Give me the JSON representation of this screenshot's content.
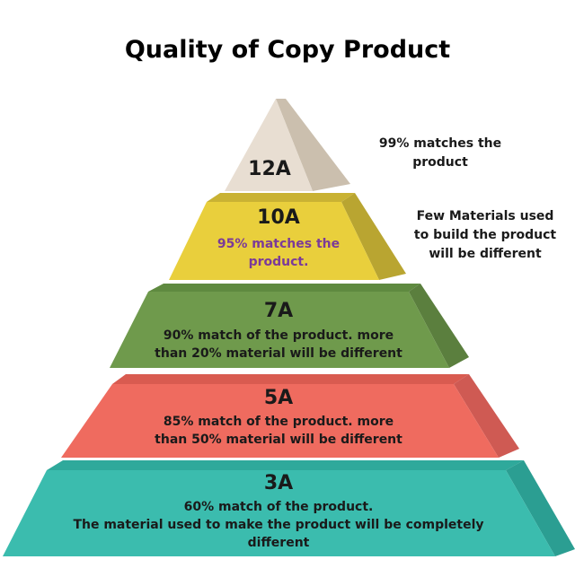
{
  "title": "Quality of Copy Product",
  "colors": {
    "level_12A": "#e8ded2",
    "level_10A": "#e9cf3c",
    "level_7A": "#6f9a4c",
    "level_5A": "#ef6b5f",
    "level_3A": "#3bbcae",
    "highlight_text": "#7b3a99"
  },
  "levels": [
    {
      "label": "12A",
      "description": []
    },
    {
      "label": "10A",
      "description": [
        "95% matches the",
        "product."
      ]
    },
    {
      "label": "7A",
      "description": [
        "90% match of the product. more",
        "than 20% material will be different"
      ]
    },
    {
      "label": "5A",
      "description": [
        "85% match of the product. more",
        "than 50% material will be different"
      ]
    },
    {
      "label": "3A",
      "description": [
        "60% match of the product.",
        "The material used to make the product will be completely",
        "different"
      ]
    }
  ],
  "side_notes": [
    {
      "lines": [
        "99%  matches the",
        "product"
      ]
    },
    {
      "lines": [
        "Few Materials used",
        "to build the product",
        "will be different"
      ]
    }
  ]
}
